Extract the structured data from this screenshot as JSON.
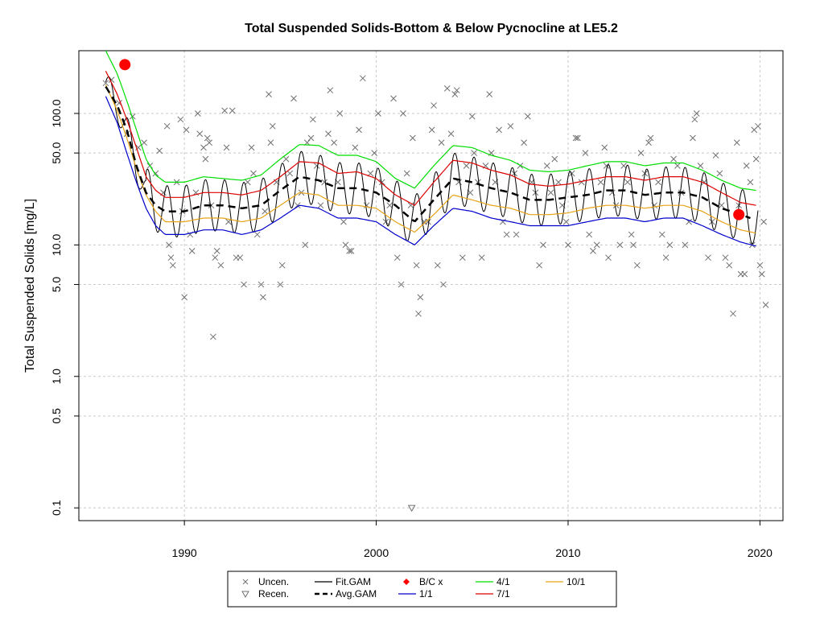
{
  "chart_data": {
    "type": "scatter",
    "title": "Total Suspended Solids-Bottom & Below Pycnocline at LE5.2",
    "xlabel": "",
    "ylabel": "Total Suspended Solids [mg/L]",
    "y_scale": "log",
    "xlim": [
      1984.5,
      2021.2
    ],
    "ylim": [
      0.08,
      300
    ],
    "grid": true,
    "legend_position": "bottom",
    "x_ticks": [
      1990,
      2000,
      2010,
      2020
    ],
    "y_ticks": [
      0.1,
      0.5,
      1.0,
      5.0,
      10.0,
      50.0,
      100.0
    ],
    "y_tick_labels": [
      "0.1",
      "0.5",
      "1.0",
      "5.0",
      "10.0",
      "50.0",
      "100.0"
    ],
    "legend": [
      {
        "label": "Uncen.",
        "symbol": "x",
        "color": "#707070"
      },
      {
        "label": "Recen.",
        "symbol": "triangle-down",
        "color": "#707070"
      },
      {
        "label": "Fit.GAM",
        "symbol": "line",
        "color": "#000000"
      },
      {
        "label": "Avg.GAM",
        "symbol": "dashed-line",
        "color": "#000000"
      },
      {
        "label": "B/C x",
        "symbol": "diamond",
        "color": "#ff0000"
      },
      {
        "label": "1/1",
        "symbol": "line",
        "color": "#0000cc"
      },
      {
        "label": "4/1",
        "symbol": "line",
        "color": "#00dd00"
      },
      {
        "label": "7/1",
        "symbol": "line",
        "color": "#dd0000"
      },
      {
        "label": "10/1",
        "symbol": "line",
        "color": "#e8a317"
      }
    ],
    "uncensored_points": [
      [
        1985.9,
        170
      ],
      [
        1986.2,
        180
      ],
      [
        1986.6,
        120
      ],
      [
        1987.0,
        70
      ],
      [
        1987.3,
        95
      ],
      [
        1987.6,
        55
      ],
      [
        1987.9,
        60
      ],
      [
        1988.2,
        40
      ],
      [
        1988.5,
        35
      ],
      [
        1988.7,
        52
      ],
      [
        1988.9,
        25
      ],
      [
        1989.1,
        80
      ],
      [
        1989.2,
        10
      ],
      [
        1989.3,
        8
      ],
      [
        1989.4,
        7
      ],
      [
        1989.6,
        30
      ],
      [
        1989.8,
        90
      ],
      [
        1989.9,
        18
      ],
      [
        1990.0,
        4
      ],
      [
        1990.1,
        75
      ],
      [
        1990.3,
        12
      ],
      [
        1990.4,
        9
      ],
      [
        1990.6,
        25
      ],
      [
        1990.7,
        100
      ],
      [
        1990.8,
        70
      ],
      [
        1991.0,
        55
      ],
      [
        1991.1,
        45
      ],
      [
        1991.2,
        65
      ],
      [
        1991.3,
        60
      ],
      [
        1991.4,
        20
      ],
      [
        1991.5,
        2
      ],
      [
        1991.6,
        8
      ],
      [
        1991.7,
        9
      ],
      [
        1991.9,
        7
      ],
      [
        1992.1,
        105
      ],
      [
        1992.2,
        55
      ],
      [
        1992.3,
        15
      ],
      [
        1992.5,
        105
      ],
      [
        1992.7,
        8
      ],
      [
        1992.9,
        8
      ],
      [
        1993.1,
        5
      ],
      [
        1993.3,
        30
      ],
      [
        1993.5,
        55
      ],
      [
        1993.6,
        35
      ],
      [
        1993.8,
        12
      ],
      [
        1994.0,
        5
      ],
      [
        1994.1,
        4
      ],
      [
        1994.2,
        18
      ],
      [
        1994.4,
        140
      ],
      [
        1994.5,
        60
      ],
      [
        1994.6,
        80
      ],
      [
        1994.8,
        30
      ],
      [
        1995.0,
        5
      ],
      [
        1995.1,
        7
      ],
      [
        1995.3,
        45
      ],
      [
        1995.5,
        35
      ],
      [
        1995.7,
        130
      ],
      [
        1995.9,
        20
      ],
      [
        1996.1,
        25
      ],
      [
        1996.3,
        10
      ],
      [
        1996.4,
        60
      ],
      [
        1996.6,
        65
      ],
      [
        1996.7,
        90
      ],
      [
        1996.9,
        40
      ],
      [
        1997.1,
        20
      ],
      [
        1997.3,
        30
      ],
      [
        1997.5,
        70
      ],
      [
        1997.6,
        150
      ],
      [
        1997.8,
        60
      ],
      [
        1998.0,
        30
      ],
      [
        1998.1,
        100
      ],
      [
        1998.3,
        15
      ],
      [
        1998.4,
        10
      ],
      [
        1998.6,
        9
      ],
      [
        1998.7,
        9
      ],
      [
        1998.9,
        55
      ],
      [
        1999.1,
        75
      ],
      [
        1999.3,
        185
      ],
      [
        1999.5,
        20
      ],
      [
        1999.7,
        35
      ],
      [
        1999.9,
        50
      ],
      [
        2000.1,
        100
      ],
      [
        2000.3,
        30
      ],
      [
        2000.5,
        15
      ],
      [
        2000.7,
        20
      ],
      [
        2000.9,
        130
      ],
      [
        2001.1,
        8
      ],
      [
        2001.3,
        5
      ],
      [
        2001.4,
        100
      ],
      [
        2001.6,
        35
      ],
      [
        2001.8,
        20
      ],
      [
        2001.9,
        65
      ],
      [
        2002.1,
        7
      ],
      [
        2002.2,
        3
      ],
      [
        2002.3,
        4
      ],
      [
        2002.5,
        15
      ],
      [
        2002.7,
        15
      ],
      [
        2002.9,
        75
      ],
      [
        2003.0,
        115
      ],
      [
        2003.2,
        7
      ],
      [
        2003.4,
        60
      ],
      [
        2003.5,
        5
      ],
      [
        2003.7,
        155
      ],
      [
        2003.9,
        70
      ],
      [
        2004.1,
        140
      ],
      [
        2004.2,
        150
      ],
      [
        2004.3,
        30
      ],
      [
        2004.5,
        8
      ],
      [
        2004.7,
        40
      ],
      [
        2004.9,
        25
      ],
      [
        2005.0,
        95
      ],
      [
        2005.1,
        50
      ],
      [
        2005.3,
        30
      ],
      [
        2005.5,
        8
      ],
      [
        2005.7,
        40
      ],
      [
        2005.9,
        140
      ],
      [
        2006.0,
        50
      ],
      [
        2006.2,
        30
      ],
      [
        2006.4,
        75
      ],
      [
        2006.6,
        15
      ],
      [
        2006.8,
        12
      ],
      [
        2007.0,
        80
      ],
      [
        2007.2,
        35
      ],
      [
        2007.3,
        12
      ],
      [
        2007.5,
        40
      ],
      [
        2007.7,
        60
      ],
      [
        2007.9,
        95
      ],
      [
        2008.1,
        30
      ],
      [
        2008.3,
        25
      ],
      [
        2008.5,
        7
      ],
      [
        2008.7,
        10
      ],
      [
        2008.9,
        40
      ],
      [
        2009.1,
        25
      ],
      [
        2009.3,
        45
      ],
      [
        2009.5,
        30
      ],
      [
        2009.7,
        20
      ],
      [
        2009.9,
        15
      ],
      [
        2010.0,
        10
      ],
      [
        2010.2,
        35
      ],
      [
        2010.4,
        65
      ],
      [
        2010.5,
        65
      ],
      [
        2010.7,
        30
      ],
      [
        2010.9,
        50
      ],
      [
        2011.1,
        12
      ],
      [
        2011.3,
        9
      ],
      [
        2011.5,
        10
      ],
      [
        2011.7,
        30
      ],
      [
        2011.9,
        55
      ],
      [
        2012.0,
        40
      ],
      [
        2012.1,
        8
      ],
      [
        2012.3,
        25
      ],
      [
        2012.5,
        20
      ],
      [
        2012.7,
        10
      ],
      [
        2012.9,
        40
      ],
      [
        2013.1,
        30
      ],
      [
        2013.3,
        12
      ],
      [
        2013.4,
        10
      ],
      [
        2013.6,
        7
      ],
      [
        2013.8,
        50
      ],
      [
        2014.0,
        35
      ],
      [
        2014.2,
        60
      ],
      [
        2014.3,
        65
      ],
      [
        2014.5,
        20
      ],
      [
        2014.7,
        30
      ],
      [
        2014.9,
        12
      ],
      [
        2015.1,
        8
      ],
      [
        2015.3,
        10
      ],
      [
        2015.5,
        45
      ],
      [
        2015.7,
        40
      ],
      [
        2015.9,
        25
      ],
      [
        2016.1,
        10
      ],
      [
        2016.3,
        15
      ],
      [
        2016.5,
        65
      ],
      [
        2016.6,
        90
      ],
      [
        2016.7,
        100
      ],
      [
        2016.9,
        40
      ],
      [
        2017.1,
        30
      ],
      [
        2017.3,
        8
      ],
      [
        2017.5,
        15
      ],
      [
        2017.7,
        48
      ],
      [
        2017.9,
        35
      ],
      [
        2018.0,
        20
      ],
      [
        2018.2,
        8
      ],
      [
        2018.4,
        7
      ],
      [
        2018.6,
        3
      ],
      [
        2018.8,
        60
      ],
      [
        2018.9,
        20
      ],
      [
        2019.0,
        6
      ],
      [
        2019.2,
        6
      ],
      [
        2019.3,
        40
      ],
      [
        2019.5,
        30
      ],
      [
        2019.6,
        10
      ],
      [
        2019.7,
        75
      ],
      [
        2019.8,
        45
      ],
      [
        2019.9,
        80
      ],
      [
        2020.0,
        7
      ],
      [
        2020.1,
        6
      ],
      [
        2020.2,
        15
      ],
      [
        2020.3,
        3.5
      ]
    ],
    "recensored_points": [
      [
        2001.85,
        0.1
      ]
    ],
    "bc_points": [
      [
        1986.9,
        235
      ],
      [
        2018.9,
        17
      ]
    ],
    "gam_series": [
      {
        "name": "1/1",
        "color": "#0000cc",
        "x": [
          1985.9,
          1986.5,
          1987,
          1987.5,
          1988,
          1988.5,
          1989,
          1990,
          1991,
          1992,
          1993,
          1994,
          1995,
          1996,
          1997,
          1998,
          1999,
          2000,
          2001,
          2002,
          2003,
          2004,
          2005,
          2006,
          2007,
          2008,
          2009,
          2010,
          2011,
          2012,
          2013,
          2014,
          2015,
          2016,
          2017,
          2018,
          2019,
          2019.8
        ],
        "y": [
          135,
          85,
          50,
          30,
          19,
          14,
          12,
          12,
          13,
          13,
          12,
          13,
          16,
          20,
          19,
          16,
          16,
          15,
          12,
          10,
          14,
          19,
          18,
          16,
          15,
          14,
          14,
          14,
          15,
          16,
          16,
          15,
          16,
          16,
          14,
          12,
          10.5,
          9.8
        ]
      },
      {
        "name": "10/1",
        "color": "#e8a317",
        "x": [
          1985.9,
          1986.5,
          1987,
          1987.5,
          1988,
          1988.5,
          1989,
          1990,
          1991,
          1992,
          1993,
          1994,
          1995,
          1996,
          1997,
          1998,
          1999,
          2000,
          2001,
          2002,
          2003,
          2004,
          2005,
          2006,
          2007,
          2008,
          2009,
          2010,
          2011,
          2012,
          2013,
          2014,
          2015,
          2016,
          2017,
          2018,
          2019,
          2019.8
        ],
        "y": [
          165,
          105,
          65,
          38,
          24,
          18,
          15,
          15,
          16,
          16,
          15,
          16,
          20,
          25,
          24,
          20,
          20,
          19,
          15,
          12.5,
          17,
          24,
          22,
          20,
          19,
          17,
          17,
          17.5,
          19,
          20,
          20,
          19,
          20,
          20,
          18,
          15,
          13,
          12.3
        ]
      },
      {
        "name": "7/1",
        "color": "#dd0000",
        "x": [
          1985.9,
          1986.5,
          1987,
          1987.5,
          1988,
          1988.5,
          1989,
          1990,
          1991,
          1992,
          1993,
          1994,
          1995,
          1996,
          1997,
          1998,
          1999,
          2000,
          2001,
          2002,
          2003,
          2004,
          2005,
          2006,
          2007,
          2008,
          2009,
          2010,
          2011,
          2012,
          2013,
          2014,
          2015,
          2016,
          2017,
          2018,
          2019,
          2019.8
        ],
        "y": [
          210,
          140,
          90,
          55,
          33,
          26,
          23,
          23,
          25,
          25,
          24,
          26,
          33,
          43,
          42,
          35,
          36,
          32,
          24,
          20,
          30,
          44,
          42,
          37,
          34,
          29,
          28,
          29,
          31,
          33,
          33,
          31,
          33,
          33,
          30,
          25,
          21,
          20
        ]
      },
      {
        "name": "4/1",
        "color": "#00dd00",
        "x": [
          1985.9,
          1986.5,
          1987,
          1987.5,
          1988,
          1988.5,
          1989,
          1990,
          1991,
          1992,
          1993,
          1994,
          1995,
          1996,
          1997,
          1998,
          1999,
          2000,
          2001,
          2002,
          2003,
          2004,
          2005,
          2006,
          2007,
          2008,
          2009,
          2010,
          2011,
          2012,
          2013,
          2014,
          2015,
          2016,
          2017,
          2018,
          2019,
          2019.8
        ],
        "y": [
          300,
          200,
          125,
          75,
          45,
          34,
          30,
          30,
          33,
          32,
          31,
          34,
          45,
          58,
          57,
          48,
          48,
          43,
          32,
          27,
          40,
          57,
          55,
          48,
          44,
          37,
          36,
          37,
          40,
          43,
          43,
          40,
          42,
          42,
          37,
          31,
          27,
          26
        ]
      },
      {
        "name": "Avg.GAM",
        "color": "#000000",
        "dashed": true,
        "x": [
          1985.9,
          1986.5,
          1987,
          1987.5,
          1988,
          1988.5,
          1989,
          1990,
          1991,
          1992,
          1993,
          1994,
          1995,
          1996,
          1997,
          1998,
          1999,
          2000,
          2001,
          2002,
          2003,
          2004,
          2005,
          2006,
          2007,
          2008,
          2009,
          2010,
          2011,
          2012,
          2013,
          2014,
          2015,
          2016,
          2017,
          2018,
          2019,
          2019.5
        ],
        "y": [
          160,
          115,
          75,
          40,
          25,
          20,
          18,
          18,
          20,
          20,
          19,
          20,
          26,
          33,
          31,
          27,
          27,
          25,
          20,
          15,
          22,
          32,
          30,
          27,
          25,
          22,
          22,
          23,
          24,
          26,
          26,
          24,
          25,
          25,
          23,
          19,
          17,
          16
        ]
      }
    ],
    "fit_gam": {
      "name": "Fit.GAM",
      "color": "#000000",
      "x_start": 1985.9,
      "x_end": 2019.9,
      "cycles_per_year": 1,
      "log_amplitude": 0.45
    }
  }
}
